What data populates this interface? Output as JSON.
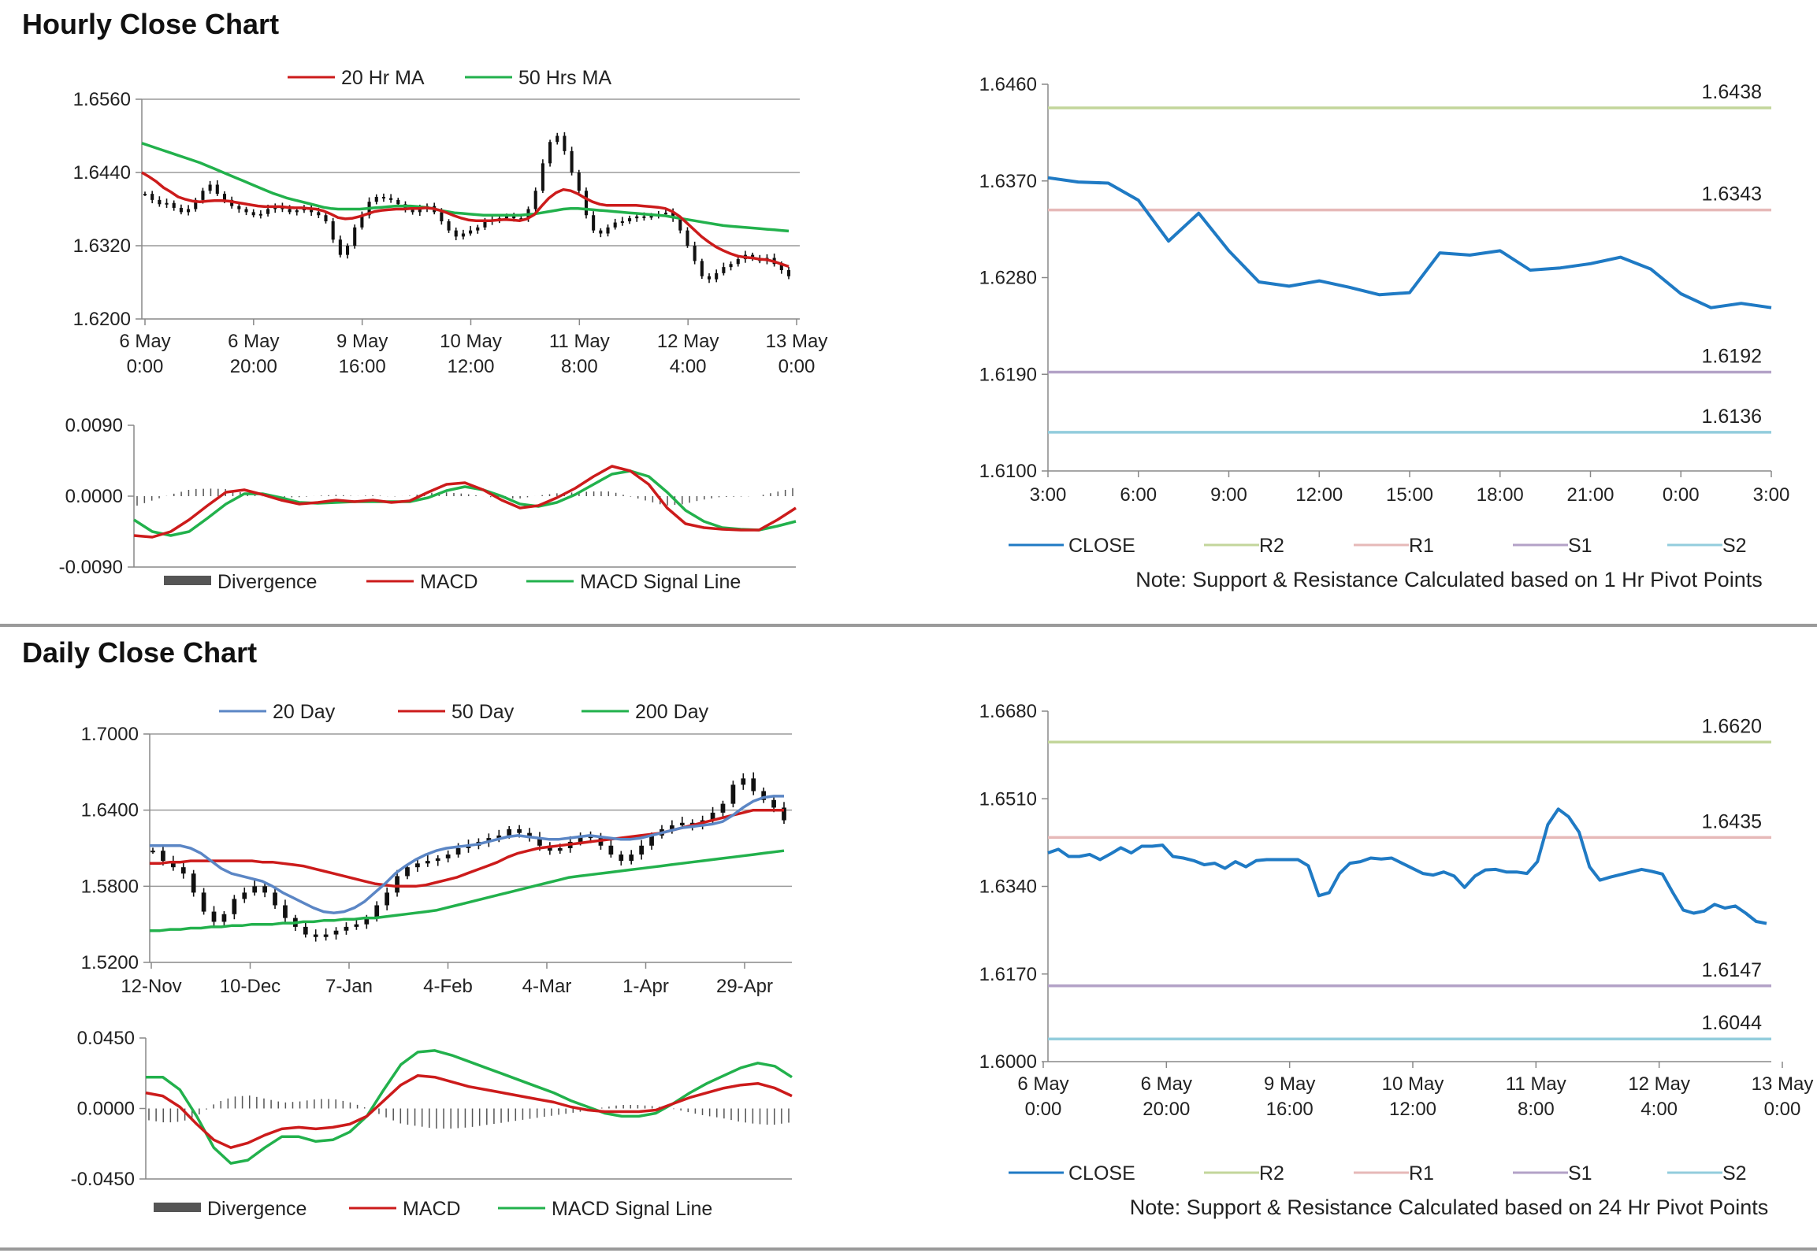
{
  "sections": {
    "hourly_title": "Hourly Close Chart",
    "daily_title": "Daily Close Chart"
  },
  "colors": {
    "grid": "#9a9a9a",
    "axis": "#888888",
    "candle": "#111111",
    "ma20": "#cc1b1b",
    "ma50": "#22b14c",
    "day20": "#5b86c5",
    "close": "#1f7ac4",
    "r2": "#c3d69b",
    "r1": "#e6b9b8",
    "s1": "#b3a2c7",
    "s2": "#93cddd",
    "divergence": "#555555"
  },
  "chart_data": [
    {
      "id": "hourly_price",
      "type": "line",
      "title": "",
      "ylim": [
        1.62,
        1.656
      ],
      "yticks": [
        "1.6560",
        "1.6440",
        "1.6320",
        "1.6200"
      ],
      "xticks": [
        [
          "6 May",
          "0:00"
        ],
        [
          "6 May",
          "20:00"
        ],
        [
          "9 May",
          "16:00"
        ],
        [
          "10 May",
          "12:00"
        ],
        [
          "11 May",
          "8:00"
        ],
        [
          "12 May",
          "4:00"
        ],
        [
          "13 May",
          "0:00"
        ]
      ],
      "legend": [
        "20 Hr MA",
        "50 Hrs MA"
      ],
      "legend_position": "top",
      "price": [
        1.6405,
        1.6395,
        1.6388,
        1.639,
        1.6382,
        1.6375,
        1.638,
        1.6395,
        1.641,
        1.642,
        1.6405,
        1.6395,
        1.6385,
        1.638,
        1.6375,
        1.637,
        1.6372,
        1.638,
        1.6385,
        1.638,
        1.6375,
        1.6378,
        1.6382,
        1.6375,
        1.637,
        1.636,
        1.633,
        1.6305,
        1.632,
        1.635,
        1.637,
        1.6392,
        1.64,
        1.6398,
        1.6395,
        1.6388,
        1.638,
        1.6375,
        1.638,
        1.6385,
        1.6375,
        1.636,
        1.6345,
        1.6335,
        1.634,
        1.6345,
        1.635,
        1.636,
        1.6362,
        1.6365,
        1.6368,
        1.6365,
        1.6365,
        1.638,
        1.641,
        1.6455,
        1.649,
        1.65,
        1.6475,
        1.644,
        1.641,
        1.637,
        1.6345,
        1.634,
        1.635,
        1.6358,
        1.636,
        1.6365,
        1.6368,
        1.6366,
        1.637,
        1.6372,
        1.6374,
        1.6365,
        1.6345,
        1.632,
        1.6295,
        1.627,
        1.6265,
        1.6275,
        1.6285,
        1.629,
        1.6298,
        1.6305,
        1.63,
        1.6295,
        1.63,
        1.629,
        1.628,
        1.627
      ],
      "ma20": [
        1.644,
        1.6433,
        1.6425,
        1.6415,
        1.6408,
        1.64,
        1.6396,
        1.6393,
        1.6392,
        1.6393,
        1.6394,
        1.6394,
        1.6393,
        1.6391,
        1.6389,
        1.6387,
        1.6385,
        1.6384,
        1.6384,
        1.6384,
        1.6383,
        1.6382,
        1.6382,
        1.6381,
        1.638,
        1.6377,
        1.6372,
        1.6366,
        1.6364,
        1.6365,
        1.6368,
        1.6372,
        1.6376,
        1.6378,
        1.6379,
        1.638,
        1.638,
        1.6381,
        1.6381,
        1.6382,
        1.6381,
        1.6378,
        1.6374,
        1.6369,
        1.6365,
        1.6362,
        1.6361,
        1.6361,
        1.6361,
        1.6362,
        1.6363,
        1.6362,
        1.6361,
        1.6364,
        1.6371,
        1.6385,
        1.6398,
        1.6407,
        1.6412,
        1.641,
        1.6405,
        1.6398,
        1.6392,
        1.6388,
        1.6386,
        1.6386,
        1.6386,
        1.6386,
        1.6386,
        1.6385,
        1.6384,
        1.6383,
        1.6381,
        1.6376,
        1.6368,
        1.6357,
        1.6346,
        1.6335,
        1.6326,
        1.6318,
        1.6312,
        1.6307,
        1.6303,
        1.6301,
        1.63,
        1.6298,
        1.6297,
        1.6294,
        1.629,
        1.6286
      ],
      "ma50": [
        1.6488,
        1.6484,
        1.648,
        1.6476,
        1.6472,
        1.6468,
        1.6464,
        1.646,
        1.6456,
        1.6451,
        1.6446,
        1.6441,
        1.6436,
        1.6431,
        1.6426,
        1.6421,
        1.6416,
        1.6411,
        1.6406,
        1.6402,
        1.6398,
        1.6395,
        1.6392,
        1.6389,
        1.6386,
        1.6383,
        1.6381,
        1.638,
        1.638,
        1.638,
        1.638,
        1.6381,
        1.6382,
        1.6383,
        1.6384,
        1.6385,
        1.6385,
        1.6385,
        1.6384,
        1.6383,
        1.6381,
        1.6378,
        1.6376,
        1.6374,
        1.6373,
        1.6372,
        1.6371,
        1.637,
        1.637,
        1.637,
        1.637,
        1.637,
        1.637,
        1.6371,
        1.6372,
        1.6374,
        1.6376,
        1.6378,
        1.638,
        1.6381,
        1.6381,
        1.638,
        1.6379,
        1.6378,
        1.6377,
        1.6376,
        1.6375,
        1.6374,
        1.6373,
        1.6372,
        1.6371,
        1.637,
        1.6369,
        1.6367,
        1.6365,
        1.6363,
        1.6361,
        1.6359,
        1.6357,
        1.6355,
        1.6353,
        1.6352,
        1.6351,
        1.635,
        1.6349,
        1.6348,
        1.6347,
        1.6346,
        1.6345,
        1.6344
      ]
    },
    {
      "id": "hourly_macd",
      "type": "line",
      "ylim": [
        -0.009,
        0.009
      ],
      "yticks": [
        "0.0090",
        "0.0000",
        "-0.0090"
      ],
      "legend": [
        "Divergence",
        "MACD",
        "MACD  Signal Line"
      ],
      "legend_position": "bottom",
      "macd": [
        -0.005,
        -0.0052,
        -0.0045,
        -0.003,
        -0.0012,
        0.0005,
        0.0008,
        0.0002,
        -0.0005,
        -0.001,
        -0.0008,
        -0.0005,
        -0.0007,
        -0.0005,
        -0.0008,
        -0.0006,
        0.0005,
        0.0015,
        0.0017,
        0.0008,
        -0.0005,
        -0.0015,
        -0.0012,
        -0.0002,
        0.001,
        0.0025,
        0.0038,
        0.0032,
        0.0015,
        -0.0015,
        -0.0035,
        -0.004,
        -0.0042,
        -0.0043,
        -0.0043,
        -0.003,
        -0.0015
      ],
      "signal": [
        -0.003,
        -0.0045,
        -0.005,
        -0.0045,
        -0.0028,
        -0.001,
        0.0003,
        0.0003,
        -0.0002,
        -0.0008,
        -0.0009,
        -0.0008,
        -0.0007,
        -0.0007,
        -0.0007,
        -0.0007,
        -0.0002,
        0.0007,
        0.0012,
        0.0008,
        0.0,
        -0.001,
        -0.0013,
        -0.0008,
        0.0002,
        0.0015,
        0.0028,
        0.0032,
        0.0025,
        0.0005,
        -0.0018,
        -0.0032,
        -0.004,
        -0.0042,
        -0.0043,
        -0.0038,
        -0.0032
      ]
    },
    {
      "id": "hourly_pivot",
      "type": "line",
      "ylim": [
        1.61,
        1.646
      ],
      "yticks": [
        "1.6460",
        "1.6370",
        "1.6280",
        "1.6190",
        "1.6100"
      ],
      "xticks": [
        "3:00",
        "6:00",
        "9:00",
        "12:00",
        "15:00",
        "18:00",
        "21:00",
        "0:00",
        "3:00"
      ],
      "close": [
        1.6373,
        1.6369,
        1.6368,
        1.6352,
        1.6314,
        1.634,
        1.6305,
        1.6276,
        1.6272,
        1.6277,
        1.6271,
        1.6264,
        1.6266,
        1.6303,
        1.6301,
        1.6305,
        1.6287,
        1.6289,
        1.6293,
        1.6299,
        1.6288,
        1.6265,
        1.6252,
        1.6256,
        1.6252
      ],
      "levels": [
        {
          "name": "R2",
          "value": 1.6438,
          "label": "1.6438"
        },
        {
          "name": "R1",
          "value": 1.6343,
          "label": "1.6343"
        },
        {
          "name": "S1",
          "value": 1.6192,
          "label": "1.6192"
        },
        {
          "name": "S2",
          "value": 1.6136,
          "label": "1.6136"
        }
      ],
      "legend": [
        "CLOSE",
        "R2",
        "R1",
        "S1",
        "S2"
      ],
      "note": "Note: Support & Resistance Calculated based on 1 Hr Pivot Points"
    },
    {
      "id": "daily_price",
      "type": "line",
      "ylim": [
        1.52,
        1.7
      ],
      "yticks": [
        "1.7000",
        "1.6400",
        "1.5800",
        "1.5200"
      ],
      "xticks": [
        "12-Nov",
        "10-Dec",
        "7-Jan",
        "4-Feb",
        "4-Mar",
        "1-Apr",
        "29-Apr"
      ],
      "legend": [
        "20 Day",
        "50 Day",
        "200 Day"
      ],
      "legend_position": "top",
      "price": [
        1.608,
        1.6,
        1.595,
        1.59,
        1.575,
        1.56,
        1.552,
        1.558,
        1.57,
        1.575,
        1.58,
        1.575,
        1.565,
        1.555,
        1.548,
        1.542,
        1.54,
        1.542,
        1.545,
        1.548,
        1.55,
        1.555,
        1.565,
        1.575,
        1.588,
        1.595,
        1.598,
        1.6,
        1.602,
        1.605,
        1.61,
        1.612,
        1.615,
        1.618,
        1.62,
        1.625,
        1.622,
        1.618,
        1.612,
        1.608,
        1.61,
        1.615,
        1.62,
        1.618,
        1.612,
        1.605,
        1.6,
        1.605,
        1.612,
        1.62,
        1.625,
        1.628,
        1.63,
        1.628,
        1.632,
        1.638,
        1.645,
        1.66,
        1.665,
        1.655,
        1.648,
        1.642,
        1.632
      ],
      "d20": [
        1.612,
        1.612,
        1.612,
        1.612,
        1.61,
        1.606,
        1.6,
        1.594,
        1.59,
        1.588,
        1.586,
        1.584,
        1.58,
        1.575,
        1.571,
        1.567,
        1.563,
        1.56,
        1.559,
        1.56,
        1.563,
        1.568,
        1.575,
        1.582,
        1.59,
        1.596,
        1.601,
        1.605,
        1.608,
        1.61,
        1.611,
        1.612,
        1.613,
        1.615,
        1.617,
        1.619,
        1.62,
        1.619,
        1.618,
        1.617,
        1.617,
        1.618,
        1.619,
        1.62,
        1.619,
        1.618,
        1.617,
        1.617,
        1.618,
        1.62,
        1.622,
        1.624,
        1.626,
        1.627,
        1.628,
        1.629,
        1.631,
        1.636,
        1.642,
        1.647,
        1.65,
        1.651,
        1.651
      ],
      "d50": [
        1.598,
        1.598,
        1.599,
        1.599,
        1.6,
        1.6,
        1.6,
        1.6,
        1.6,
        1.6,
        1.6,
        1.599,
        1.599,
        1.598,
        1.597,
        1.596,
        1.594,
        1.592,
        1.59,
        1.588,
        1.586,
        1.584,
        1.582,
        1.581,
        1.58,
        1.58,
        1.58,
        1.581,
        1.583,
        1.585,
        1.587,
        1.59,
        1.593,
        1.596,
        1.599,
        1.603,
        1.606,
        1.608,
        1.61,
        1.611,
        1.612,
        1.613,
        1.614,
        1.615,
        1.616,
        1.617,
        1.618,
        1.619,
        1.62,
        1.621,
        1.622,
        1.624,
        1.626,
        1.628,
        1.63,
        1.632,
        1.634,
        1.636,
        1.638,
        1.64,
        1.64,
        1.64,
        1.64
      ],
      "d200": [
        1.545,
        1.545,
        1.546,
        1.546,
        1.547,
        1.547,
        1.548,
        1.548,
        1.549,
        1.549,
        1.55,
        1.55,
        1.55,
        1.551,
        1.551,
        1.552,
        1.552,
        1.553,
        1.553,
        1.554,
        1.554,
        1.555,
        1.555,
        1.556,
        1.557,
        1.558,
        1.559,
        1.56,
        1.561,
        1.563,
        1.565,
        1.567,
        1.569,
        1.571,
        1.573,
        1.575,
        1.577,
        1.579,
        1.581,
        1.583,
        1.585,
        1.587,
        1.588,
        1.589,
        1.59,
        1.591,
        1.592,
        1.593,
        1.594,
        1.595,
        1.596,
        1.597,
        1.598,
        1.599,
        1.6,
        1.601,
        1.602,
        1.603,
        1.604,
        1.605,
        1.606,
        1.607,
        1.608
      ]
    },
    {
      "id": "daily_macd",
      "type": "line",
      "ylim": [
        -0.045,
        0.045
      ],
      "yticks": [
        "0.0450",
        "0.0000",
        "-0.0450"
      ],
      "legend": [
        "Divergence",
        "MACD",
        "MACD  Signal Line"
      ],
      "legend_position": "bottom",
      "macd": [
        0.01,
        0.008,
        0.001,
        -0.01,
        -0.02,
        -0.025,
        -0.022,
        -0.017,
        -0.013,
        -0.012,
        -0.013,
        -0.012,
        -0.01,
        -0.005,
        0.005,
        0.015,
        0.021,
        0.02,
        0.017,
        0.014,
        0.012,
        0.01,
        0.008,
        0.006,
        0.004,
        0.001,
        -0.001,
        -0.002,
        -0.002,
        -0.002,
        -0.001,
        0.003,
        0.007,
        0.01,
        0.013,
        0.015,
        0.016,
        0.013,
        0.008
      ],
      "signal": [
        0.02,
        0.02,
        0.012,
        -0.005,
        -0.025,
        -0.035,
        -0.033,
        -0.025,
        -0.018,
        -0.018,
        -0.021,
        -0.02,
        -0.015,
        -0.005,
        0.012,
        0.028,
        0.036,
        0.037,
        0.034,
        0.03,
        0.026,
        0.022,
        0.018,
        0.014,
        0.01,
        0.005,
        0.001,
        -0.003,
        -0.005,
        -0.005,
        -0.003,
        0.003,
        0.01,
        0.016,
        0.021,
        0.026,
        0.029,
        0.027,
        0.02
      ]
    },
    {
      "id": "daily_pivot",
      "type": "line",
      "ylim": [
        1.6,
        1.668
      ],
      "yticks": [
        "1.6680",
        "1.6510",
        "1.6340",
        "1.6170",
        "1.6000"
      ],
      "xticks": [
        [
          "6 May",
          "0:00"
        ],
        [
          "6 May",
          "20:00"
        ],
        [
          "9 May",
          "16:00"
        ],
        [
          "10 May",
          "12:00"
        ],
        [
          "11 May",
          "8:00"
        ],
        [
          "12 May",
          "4:00"
        ],
        [
          "13 May",
          "0:00"
        ]
      ],
      "close": [
        1.6405,
        1.6412,
        1.6398,
        1.6398,
        1.6402,
        1.6392,
        1.6403,
        1.6415,
        1.6405,
        1.6418,
        1.6418,
        1.642,
        1.6398,
        1.6395,
        1.639,
        1.6382,
        1.6385,
        1.6375,
        1.6388,
        1.6378,
        1.639,
        1.6392,
        1.6392,
        1.6392,
        1.6392,
        1.638,
        1.6322,
        1.6328,
        1.6365,
        1.6385,
        1.6388,
        1.6395,
        1.6393,
        1.6395,
        1.6385,
        1.6375,
        1.6365,
        1.6362,
        1.6368,
        1.636,
        1.6338,
        1.636,
        1.6372,
        1.6373,
        1.6368,
        1.6368,
        1.6365,
        1.6388,
        1.646,
        1.649,
        1.6475,
        1.6445,
        1.6378,
        1.6352,
        1.6358,
        1.6363,
        1.6368,
        1.6373,
        1.6369,
        1.6364,
        1.6328,
        1.6294,
        1.6288,
        1.6292,
        1.6305,
        1.6298,
        1.6302,
        1.6288,
        1.6272,
        1.6268
      ]
    }
  ],
  "daily_pivot": {
    "levels": [
      {
        "name": "R2",
        "value": 1.662,
        "label": "1.6620"
      },
      {
        "name": "R1",
        "value": 1.6435,
        "label": "1.6435"
      },
      {
        "name": "S1",
        "value": 1.6147,
        "label": "1.6147"
      },
      {
        "name": "S2",
        "value": 1.6044,
        "label": "1.6044"
      }
    ],
    "legend": [
      "CLOSE",
      "R2",
      "R1",
      "S1",
      "S2"
    ],
    "note": "Note: Support & Resistance Calculated based on 24 Hr Pivot Points"
  }
}
